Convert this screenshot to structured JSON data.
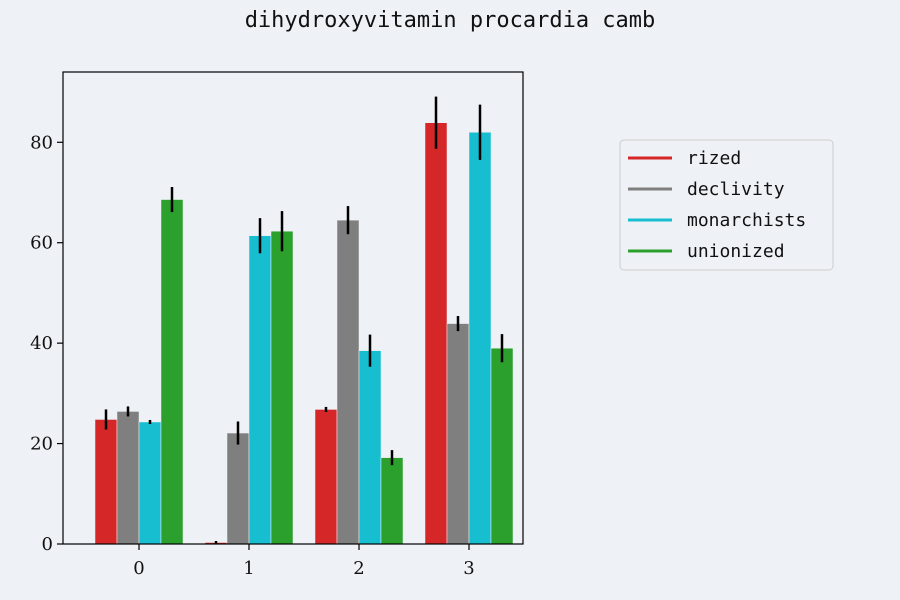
{
  "title": "dihydroxyvitamin procardia camb",
  "chart_data": {
    "type": "bar",
    "title": "dihydroxyvitamin procardia camb",
    "xlabel": "",
    "ylabel": "",
    "categories": [
      "0",
      "1",
      "2",
      "3"
    ],
    "ylim": [
      0,
      94
    ],
    "yticks": [
      0,
      20,
      40,
      60,
      80
    ],
    "legend_position": "right",
    "series": [
      {
        "name": "rized",
        "color": "#d62728",
        "values": [
          24.8,
          0.3,
          26.8,
          83.9
        ],
        "errors": [
          2.0,
          0.3,
          0.5,
          5.2
        ]
      },
      {
        "name": "declivity",
        "color": "#7f7f7f",
        "values": [
          26.4,
          22.1,
          64.5,
          43.9
        ],
        "errors": [
          1.0,
          2.3,
          2.8,
          1.5
        ]
      },
      {
        "name": "monarchists",
        "color": "#17becf",
        "values": [
          24.3,
          61.4,
          38.5,
          82.0
        ],
        "errors": [
          0.4,
          3.5,
          3.2,
          5.5
        ]
      },
      {
        "name": "unionized",
        "color": "#2ca02c",
        "values": [
          68.6,
          62.3,
          17.2,
          39.0
        ],
        "errors": [
          2.5,
          4.0,
          1.5,
          2.8
        ]
      }
    ]
  }
}
